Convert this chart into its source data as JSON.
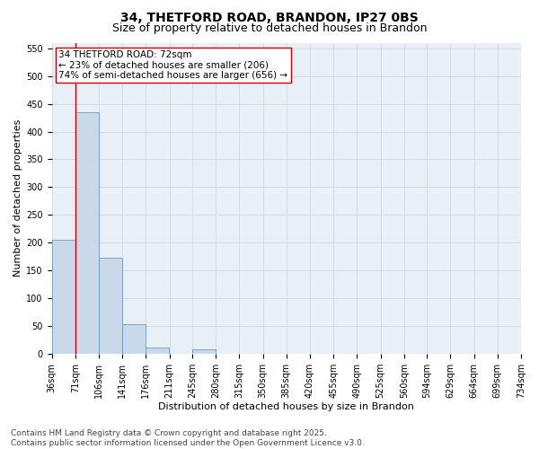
{
  "title1": "34, THETFORD ROAD, BRANDON, IP27 0BS",
  "title2": "Size of property relative to detached houses in Brandon",
  "xlabel": "Distribution of detached houses by size in Brandon",
  "ylabel": "Number of detached properties",
  "annotation_title": "34 THETFORD ROAD: 72sqm",
  "annotation_line1": "← 23% of detached houses are smaller (206)",
  "annotation_line2": "74% of semi-detached houses are larger (656) →",
  "property_size": 72,
  "bins_left": [
    36,
    71,
    106,
    141,
    176,
    211,
    245,
    280,
    315,
    350,
    385,
    420,
    455,
    490,
    525,
    560,
    594,
    629,
    664,
    699
  ],
  "bin_width": 35,
  "bar_values": [
    205,
    435,
    173,
    53,
    12,
    0,
    8,
    0,
    0,
    0,
    0,
    0,
    0,
    0,
    0,
    0,
    0,
    0,
    0,
    0
  ],
  "tick_labels": [
    "36sqm",
    "71sqm",
    "106sqm",
    "141sqm",
    "176sqm",
    "211sqm",
    "245sqm",
    "280sqm",
    "315sqm",
    "350sqm",
    "385sqm",
    "420sqm",
    "455sqm",
    "490sqm",
    "525sqm",
    "560sqm",
    "594sqm",
    "629sqm",
    "664sqm",
    "699sqm",
    "734sqm"
  ],
  "bar_color": "#c9d9ea",
  "bar_edge_color": "#5b8db8",
  "grid_color": "#c8d4e0",
  "background_color": "#e8eff6",
  "vline_color": "#cc0000",
  "annotation_box_edge_color": "#cc0000",
  "annotation_box_face_color": "#ffffff",
  "ylim": [
    0,
    560
  ],
  "yticks": [
    0,
    50,
    100,
    150,
    200,
    250,
    300,
    350,
    400,
    450,
    500,
    550
  ],
  "footer1": "Contains HM Land Registry data © Crown copyright and database right 2025.",
  "footer2": "Contains public sector information licensed under the Open Government Licence v3.0.",
  "title_fontsize": 10,
  "subtitle_fontsize": 9,
  "axis_label_fontsize": 8,
  "tick_fontsize": 7,
  "annotation_fontsize": 7.5,
  "footer_fontsize": 6.5
}
